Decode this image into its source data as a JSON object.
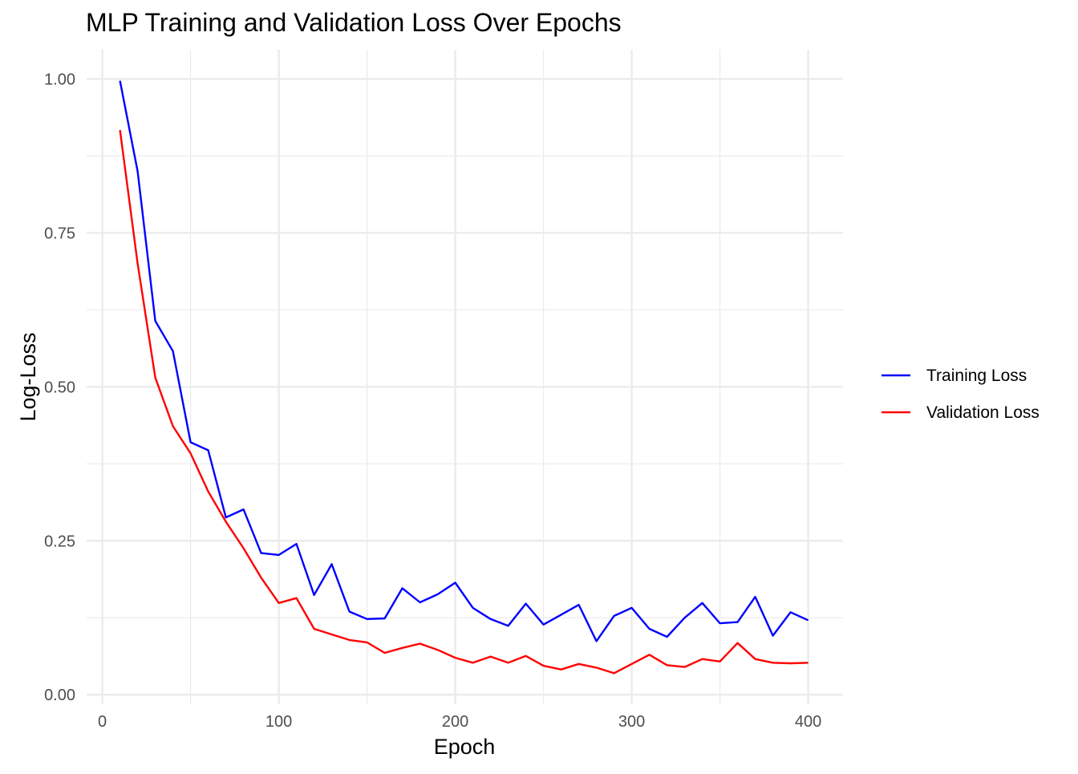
{
  "chart_data": {
    "type": "line",
    "title": "MLP Training and Validation Loss Over Epochs",
    "xlabel": "Epoch",
    "ylabel": "Log-Loss",
    "xlim": [
      0,
      400
    ],
    "ylim": [
      0,
      1.0
    ],
    "x_ticks": [
      0,
      100,
      200,
      300,
      400
    ],
    "x_tick_labels": [
      "0",
      "100",
      "200",
      "300",
      "400"
    ],
    "y_ticks": [
      0,
      0.25,
      0.5,
      0.75,
      1.0
    ],
    "y_tick_labels": [
      "0.00",
      "0.25",
      "0.50",
      "0.75",
      "1.00"
    ],
    "grid": true,
    "legend": {
      "placement": "right"
    },
    "x": [
      10,
      20,
      30,
      40,
      50,
      60,
      70,
      80,
      90,
      100,
      110,
      120,
      130,
      140,
      150,
      160,
      170,
      180,
      190,
      200,
      210,
      220,
      230,
      240,
      250,
      260,
      270,
      280,
      290,
      300,
      310,
      320,
      330,
      340,
      350,
      360,
      370,
      380,
      390,
      400
    ],
    "series": [
      {
        "name": "Training Loss",
        "color": "#0000ff",
        "values": [
          0.997,
          0.85,
          0.607,
          0.558,
          0.41,
          0.397,
          0.288,
          0.301,
          0.23,
          0.227,
          0.245,
          0.162,
          0.212,
          0.135,
          0.123,
          0.124,
          0.173,
          0.15,
          0.163,
          0.182,
          0.141,
          0.123,
          0.112,
          0.148,
          0.114,
          0.13,
          0.146,
          0.087,
          0.128,
          0.141,
          0.107,
          0.094,
          0.125,
          0.149,
          0.116,
          0.118,
          0.159,
          0.096,
          0.134,
          0.121
        ]
      },
      {
        "name": "Validation Loss",
        "color": "#ff0000",
        "values": [
          0.917,
          0.7,
          0.515,
          0.436,
          0.392,
          0.33,
          0.281,
          0.238,
          0.19,
          0.149,
          0.157,
          0.107,
          0.098,
          0.089,
          0.085,
          0.068,
          0.076,
          0.083,
          0.073,
          0.06,
          0.052,
          0.062,
          0.052,
          0.063,
          0.047,
          0.041,
          0.05,
          0.044,
          0.035,
          0.05,
          0.065,
          0.048,
          0.045,
          0.058,
          0.054,
          0.084,
          0.058,
          0.052,
          0.051,
          0.052
        ]
      }
    ]
  }
}
